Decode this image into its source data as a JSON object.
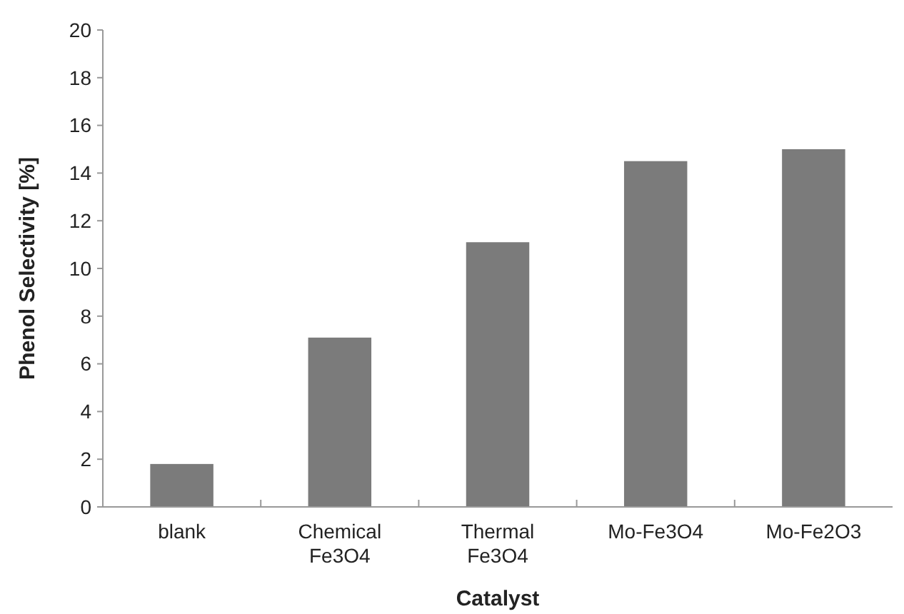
{
  "chart_data": {
    "type": "bar",
    "xlabel": "Catalyst",
    "ylabel": "Phenol Selectivity [%]",
    "categories": [
      "blank",
      "Chemical Fe3O4",
      "Thermal Fe3O4",
      "Mo-Fe3O4",
      "Mo-Fe2O3"
    ],
    "values": [
      1.8,
      7.1,
      11.1,
      14.5,
      15.0
    ],
    "color": "#7b7b7b",
    "ylim": [
      0,
      20
    ],
    "yticks": [
      0,
      2,
      4,
      6,
      8,
      10,
      12,
      14,
      16,
      18,
      20
    ],
    "grid": false
  }
}
